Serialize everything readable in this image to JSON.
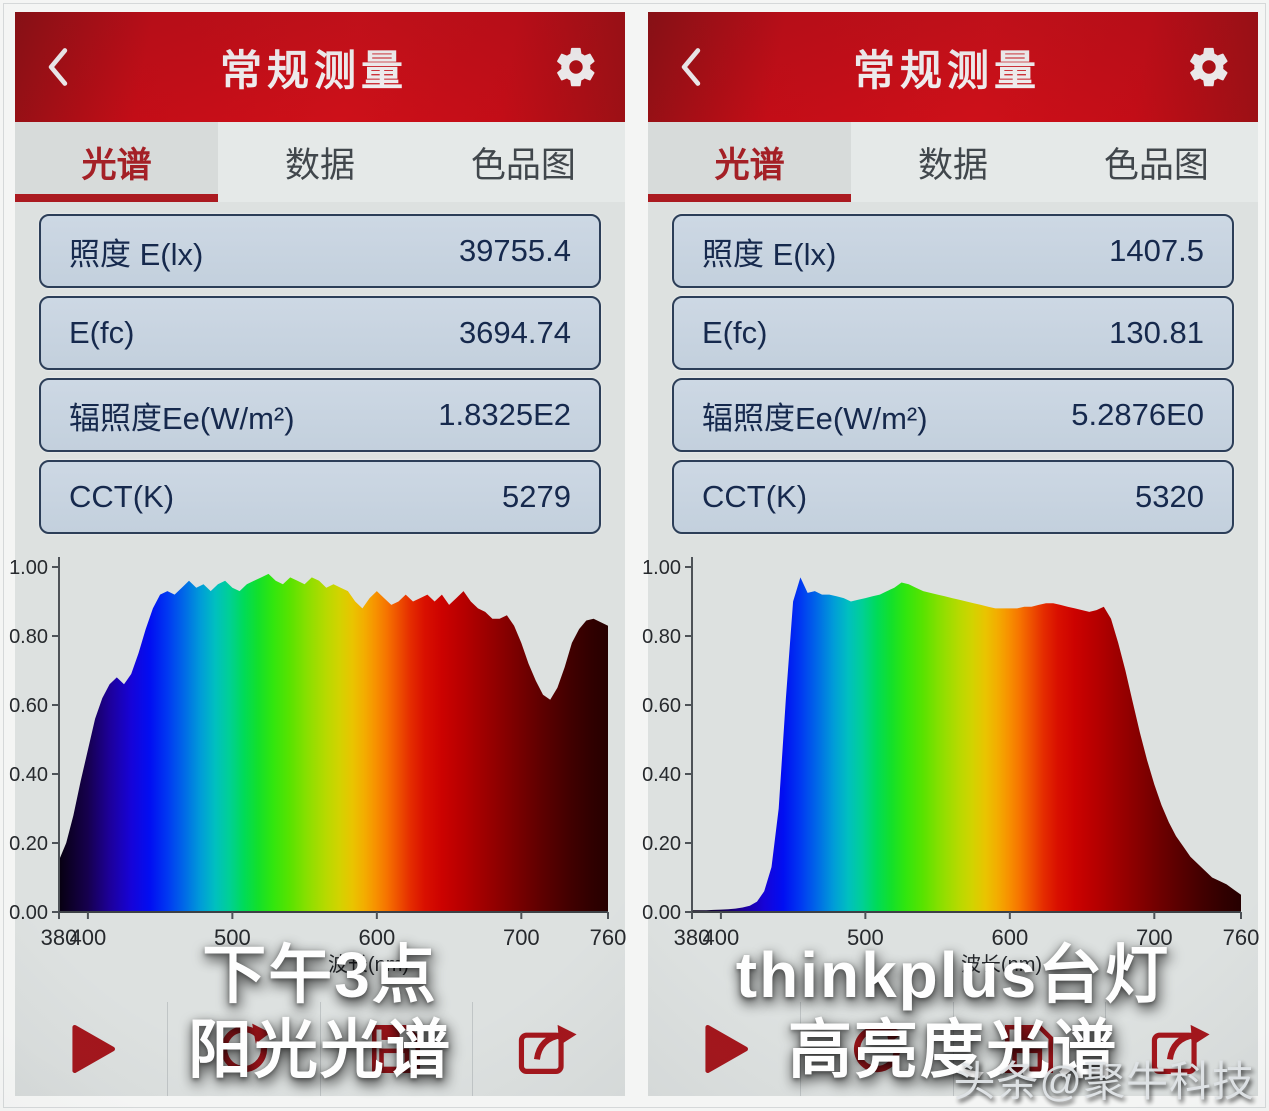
{
  "watermark": "头条@聚牛科技",
  "colors": {
    "header_red": "#c30d17",
    "accent_red": "#ab1a20",
    "icon_red": "#a4161c",
    "tab_active_text": "#a42026",
    "field_bg": "#c9d5e1",
    "field_border": "#2c3e58",
    "field_text": "#16294d",
    "panel_bg": "#dde1e0"
  },
  "icons": {
    "back": "chevron-left",
    "settings": "gear",
    "toolbar": [
      "play",
      "refresh",
      "save",
      "share"
    ]
  },
  "panels": [
    {
      "header": {
        "title": "常规测量"
      },
      "tabs": [
        {
          "label": "光谱",
          "active": true
        },
        {
          "label": "数据",
          "active": false
        },
        {
          "label": "色品图",
          "active": false
        }
      ],
      "fields": [
        {
          "label": "照度 E(lx)",
          "value": "39755.4"
        },
        {
          "label": "E(fc)",
          "value": "3694.74"
        },
        {
          "label": "辐照度Ee(W/m²)",
          "value": "1.8325E2"
        },
        {
          "label": "CCT(K)",
          "value": "5279"
        }
      ],
      "overlay": {
        "line1": "下午3点",
        "line2": "阳光光谱"
      }
    },
    {
      "header": {
        "title": "常规测量"
      },
      "tabs": [
        {
          "label": "光谱",
          "active": true
        },
        {
          "label": "数据",
          "active": false
        },
        {
          "label": "色品图",
          "active": false
        }
      ],
      "fields": [
        {
          "label": "照度 E(lx)",
          "value": "1407.5"
        },
        {
          "label": "E(fc)",
          "value": "130.81"
        },
        {
          "label": "辐照度Ee(W/m²)",
          "value": "5.2876E0"
        },
        {
          "label": "CCT(K)",
          "value": "5320"
        }
      ],
      "overlay": {
        "line1": "thinkplus台灯",
        "line2": "高亮度光谱"
      }
    }
  ],
  "chart_data": [
    {
      "type": "area",
      "title": "下午3点 阳光光谱",
      "xlabel": "波长(nm)",
      "ylabel": "",
      "xlim": [
        380,
        760
      ],
      "ylim": [
        0,
        1
      ],
      "x_ticks": [
        380,
        400,
        500,
        600,
        700,
        760
      ],
      "y_ticks": [
        "0.00",
        "0.20",
        "0.40",
        "0.60",
        "0.80",
        "1.00"
      ],
      "grid": false,
      "legend": "none",
      "x_start": 380,
      "x_step": 5,
      "values": [
        0.15,
        0.2,
        0.28,
        0.38,
        0.47,
        0.56,
        0.62,
        0.66,
        0.68,
        0.66,
        0.69,
        0.75,
        0.82,
        0.88,
        0.92,
        0.93,
        0.92,
        0.94,
        0.96,
        0.94,
        0.95,
        0.93,
        0.95,
        0.96,
        0.94,
        0.93,
        0.95,
        0.96,
        0.97,
        0.98,
        0.96,
        0.95,
        0.97,
        0.96,
        0.95,
        0.97,
        0.96,
        0.94,
        0.95,
        0.94,
        0.93,
        0.9,
        0.88,
        0.91,
        0.93,
        0.91,
        0.89,
        0.9,
        0.92,
        0.9,
        0.91,
        0.92,
        0.9,
        0.92,
        0.89,
        0.91,
        0.93,
        0.9,
        0.88,
        0.87,
        0.85,
        0.85,
        0.86,
        0.83,
        0.78,
        0.72,
        0.67,
        0.63,
        0.615,
        0.65,
        0.71,
        0.78,
        0.82,
        0.845,
        0.85,
        0.84,
        0.83
      ]
    },
    {
      "type": "area",
      "title": "thinkplus台灯 高亮度光谱",
      "xlabel": "波长(nm)",
      "ylabel": "",
      "xlim": [
        380,
        760
      ],
      "ylim": [
        0,
        1
      ],
      "x_ticks": [
        380,
        400,
        500,
        600,
        700,
        760
      ],
      "y_ticks": [
        "0.00",
        "0.20",
        "0.40",
        "0.60",
        "0.80",
        "1.00"
      ],
      "grid": false,
      "legend": "none",
      "x_start": 380,
      "x_step": 5,
      "values": [
        0.005,
        0.005,
        0.005,
        0.006,
        0.007,
        0.008,
        0.01,
        0.013,
        0.018,
        0.03,
        0.06,
        0.13,
        0.3,
        0.62,
        0.9,
        0.97,
        0.925,
        0.93,
        0.92,
        0.92,
        0.915,
        0.91,
        0.9,
        0.905,
        0.91,
        0.915,
        0.92,
        0.93,
        0.94,
        0.955,
        0.95,
        0.94,
        0.93,
        0.925,
        0.92,
        0.915,
        0.91,
        0.905,
        0.9,
        0.895,
        0.89,
        0.885,
        0.88,
        0.88,
        0.88,
        0.88,
        0.885,
        0.885,
        0.89,
        0.895,
        0.895,
        0.89,
        0.885,
        0.88,
        0.875,
        0.87,
        0.875,
        0.885,
        0.85,
        0.78,
        0.7,
        0.61,
        0.52,
        0.44,
        0.37,
        0.31,
        0.26,
        0.22,
        0.19,
        0.16,
        0.14,
        0.12,
        0.1,
        0.09,
        0.08,
        0.065,
        0.05
      ]
    }
  ]
}
